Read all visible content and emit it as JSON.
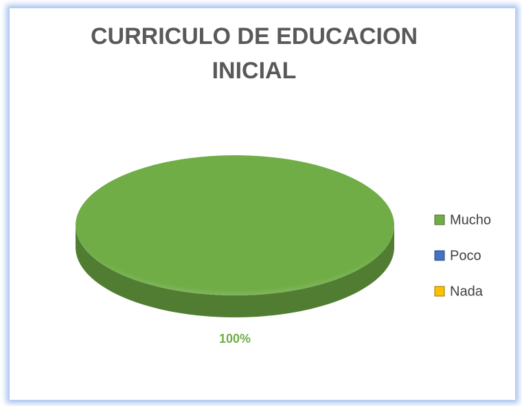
{
  "chart_data": {
    "type": "pie",
    "title": "CURRICULO DE EDUCACION INICIAL",
    "categories": [
      "Mucho",
      "Poco",
      "Nada"
    ],
    "values": [
      100,
      0,
      0
    ],
    "value_labels": [
      "100%",
      null,
      null
    ],
    "colors": [
      "#70ad47",
      "#4472c4",
      "#ffc000"
    ],
    "legend": "right"
  }
}
